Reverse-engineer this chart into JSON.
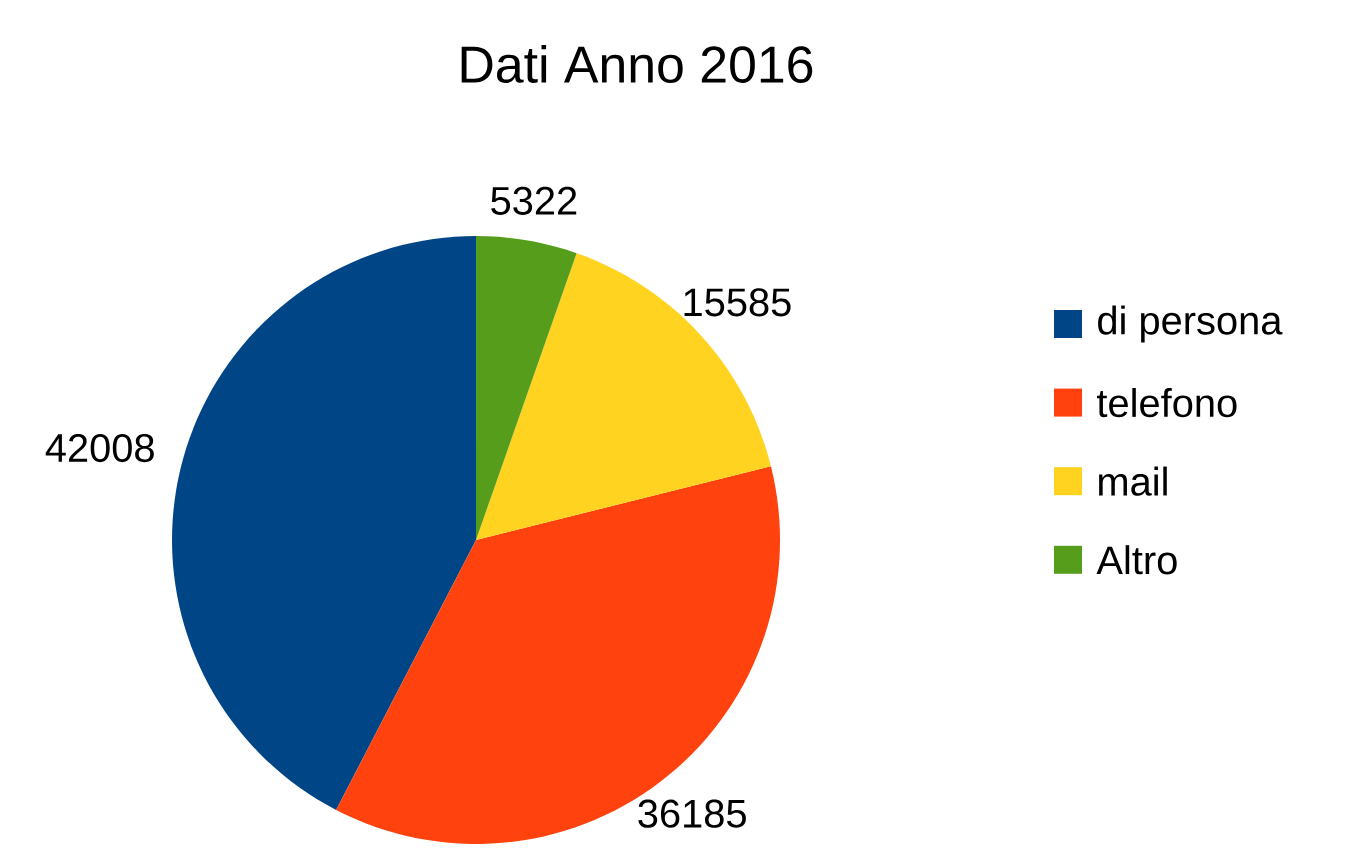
{
  "chart_data": {
    "type": "pie",
    "title": "Dati Anno 2016",
    "categories": [
      "di persona",
      "telefono",
      "mail",
      "Altro"
    ],
    "values": [
      42008,
      36185,
      15585,
      5322
    ],
    "colors": [
      "#004586",
      "#ff420e",
      "#ffd320",
      "#579d1c"
    ],
    "data_labels": true,
    "legend": "right"
  }
}
